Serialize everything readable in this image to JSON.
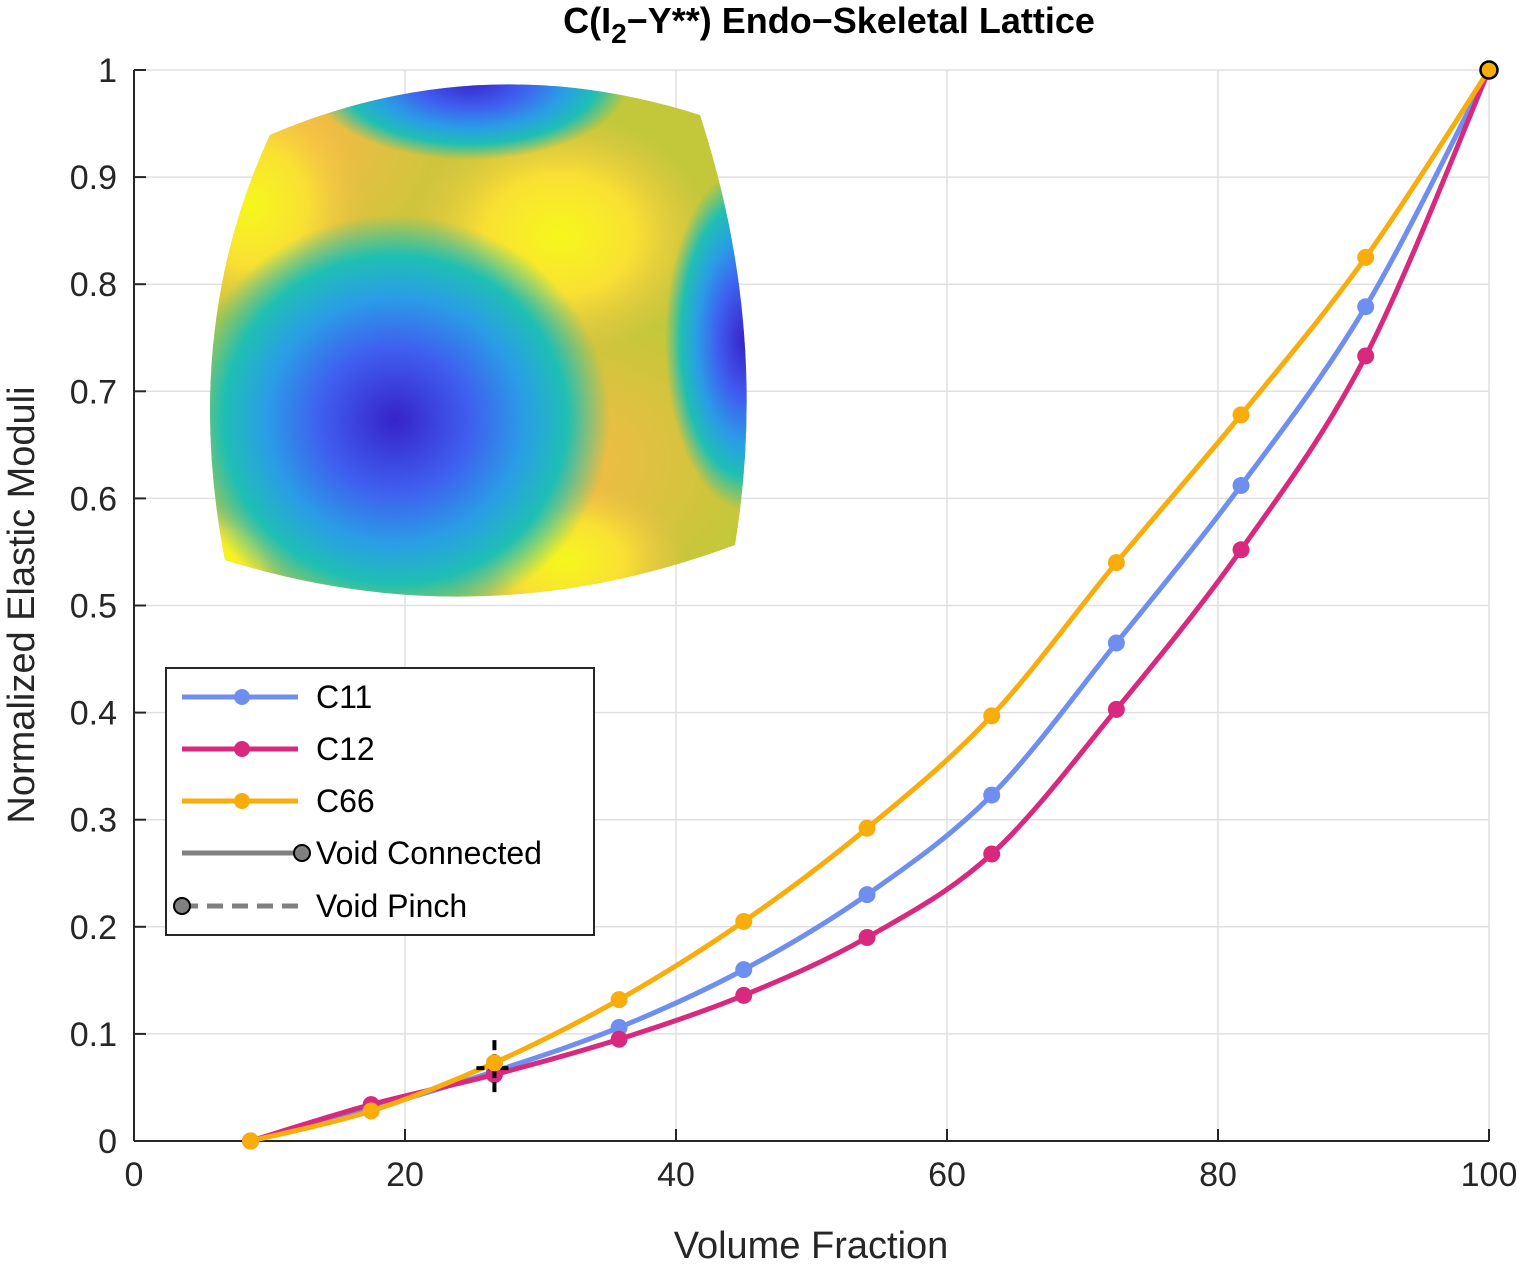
{
  "chart_data": {
    "type": "line",
    "title": {
      "prefix": "C(I",
      "subscript": "2",
      "suffix": "−Y**) Endo−Skeletal Lattice"
    },
    "xlabel": "Volume Fraction",
    "ylabel": "Normalized Elastic Moduli",
    "xlim": [
      0,
      100
    ],
    "ylim": [
      0,
      1
    ],
    "xticks": [
      0,
      20,
      40,
      60,
      80,
      100
    ],
    "yticks": [
      0,
      0.1,
      0.2,
      0.3,
      0.4,
      0.5,
      0.6,
      0.7,
      0.8,
      0.9,
      1
    ],
    "xtick_labels": [
      "0",
      "20",
      "40",
      "60",
      "80",
      "100"
    ],
    "ytick_labels": [
      "0",
      "0.1",
      "0.2",
      "0.3",
      "0.4",
      "0.5",
      "0.6",
      "0.7",
      "0.8",
      "0.9",
      "1"
    ],
    "grid": true,
    "legend_placement": "lower-left",
    "x": [
      8.6,
      17.5,
      26.6,
      35.8,
      45.0,
      54.1,
      63.3,
      72.5,
      81.7,
      90.9,
      100
    ],
    "series": [
      {
        "name": "C11",
        "color": "#6e8ff0",
        "values": [
          0,
          0.03,
          0.065,
          0.106,
          0.16,
          0.23,
          0.323,
          0.465,
          0.612,
          0.779,
          1.0
        ]
      },
      {
        "name": "C12",
        "color": "#d9297f",
        "values": [
          0,
          0.034,
          0.062,
          0.095,
          0.136,
          0.19,
          0.268,
          0.403,
          0.552,
          0.733,
          1.0
        ]
      },
      {
        "name": "C66",
        "color": "#f9ad0d",
        "values": [
          0,
          0.028,
          0.073,
          0.132,
          0.205,
          0.292,
          0.397,
          0.54,
          0.678,
          0.825,
          1.0
        ]
      }
    ],
    "legend": {
      "items": [
        {
          "label": "C11",
          "color": "#6e8ff0"
        },
        {
          "label": "C12",
          "color": "#d9297f"
        },
        {
          "label": "C66",
          "color": "#f9ad0d"
        },
        {
          "label": "Void Connected",
          "color": "#808080"
        },
        {
          "label": "Void Pinch",
          "color": "#808080"
        }
      ]
    },
    "markers": [
      {
        "kind": "void-pinch-cross",
        "x": 26.6,
        "y": 0.068,
        "color": "#000000"
      },
      {
        "kind": "void-connected-point",
        "x": 100,
        "y": 1.0,
        "color": "#f9ad0d"
      }
    ]
  },
  "colors": {
    "axis": "#262626",
    "grid": "#e0e0e0",
    "inset_low": "#3b2fd6",
    "inset_mid": "#20b4b4",
    "inset_high": "#f6f21c"
  },
  "inset": {
    "icon": "elastic-surface-sphere-icon"
  }
}
